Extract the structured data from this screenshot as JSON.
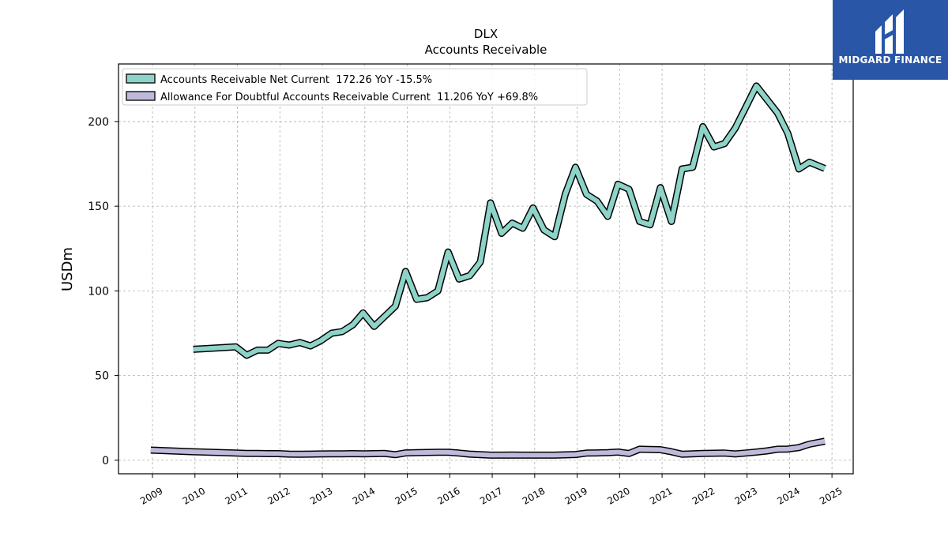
{
  "logo": {
    "text": "MIDGARD FINANCE",
    "color": "#2a56a8"
  },
  "chart_data": {
    "type": "line",
    "title": "DLX",
    "subtitle": "Accounts Receivable",
    "ylabel": "USDm",
    "xlabel": "",
    "ylim": [
      -8,
      234
    ],
    "xlim": [
      2008.2,
      2025.5
    ],
    "yticks": [
      0,
      50,
      100,
      150,
      200
    ],
    "xticks": [
      2009,
      2010,
      2011,
      2012,
      2013,
      2014,
      2015,
      2016,
      2017,
      2018,
      2019,
      2020,
      2021,
      2022,
      2023,
      2024,
      2025
    ],
    "grid": true,
    "legend_position": "upper-left",
    "series": [
      {
        "name": "Accounts Receivable Net Current  172.26 YoY -15.5%",
        "color": "#8dd3c7",
        "x": [
          2009.96,
          2010.96,
          2011.22,
          2011.47,
          2011.72,
          2011.96,
          2012.22,
          2012.47,
          2012.72,
          2012.96,
          2013.22,
          2013.47,
          2013.72,
          2013.96,
          2014.22,
          2014.47,
          2014.72,
          2014.96,
          2015.22,
          2015.47,
          2015.72,
          2015.96,
          2016.22,
          2016.47,
          2016.72,
          2016.96,
          2017.22,
          2017.47,
          2017.72,
          2017.96,
          2018.22,
          2018.47,
          2018.72,
          2018.96,
          2019.22,
          2019.47,
          2019.72,
          2019.96,
          2020.22,
          2020.47,
          2020.72,
          2020.96,
          2021.22,
          2021.47,
          2021.72,
          2021.96,
          2022.22,
          2022.47,
          2022.72,
          2022.96,
          2023.22,
          2023.47,
          2023.72,
          2023.96,
          2024.22,
          2024.47,
          2024.83
        ],
        "y": [
          65.5,
          67,
          62,
          65,
          65,
          69,
          68,
          69.5,
          67.5,
          70.5,
          75,
          76,
          80,
          87,
          79,
          85,
          91,
          111.5,
          95,
          96,
          100,
          123,
          107,
          109,
          117,
          152,
          134,
          140,
          137,
          149,
          136,
          132,
          157,
          173,
          157,
          153,
          144,
          163,
          160,
          141,
          139,
          161,
          141,
          172,
          173,
          197,
          185,
          187,
          196,
          208,
          221,
          213,
          205,
          193,
          172,
          176,
          172.26
        ]
      },
      {
        "name": "Allowance For Doubtful Accounts Receivable Current  11.206 YoY +69.8%",
        "color": "#bebada",
        "x": [
          2008.96,
          2009.96,
          2010.96,
          2011.22,
          2011.47,
          2011.72,
          2011.96,
          2012.22,
          2012.47,
          2012.72,
          2012.96,
          2013.22,
          2013.47,
          2013.72,
          2013.96,
          2014.22,
          2014.47,
          2014.72,
          2014.96,
          2015.22,
          2015.47,
          2015.72,
          2015.96,
          2016.22,
          2016.47,
          2016.72,
          2016.96,
          2017.22,
          2017.47,
          2017.72,
          2017.96,
          2018.22,
          2018.47,
          2018.72,
          2018.96,
          2019.22,
          2019.47,
          2019.72,
          2019.96,
          2020.22,
          2020.47,
          2020.72,
          2020.96,
          2021.22,
          2021.47,
          2021.72,
          2021.96,
          2022.22,
          2022.47,
          2022.72,
          2022.96,
          2023.22,
          2023.47,
          2023.72,
          2023.96,
          2024.22,
          2024.47,
          2024.83
        ],
        "y": [
          6,
          5,
          4.2,
          4,
          4,
          3.9,
          3.9,
          3.6,
          3.5,
          3.6,
          3.7,
          3.8,
          3.8,
          3.9,
          3.8,
          3.9,
          4,
          3.3,
          4.3,
          4.5,
          4.6,
          4.7,
          4.7,
          4.2,
          3.6,
          3.3,
          3,
          3,
          3.1,
          3,
          3,
          3,
          3,
          3.2,
          3.4,
          4.2,
          4.3,
          4.5,
          4.8,
          4,
          6.5,
          6.3,
          6.2,
          5,
          3.5,
          3.8,
          4,
          4.1,
          4.2,
          3.7,
          4.2,
          4.8,
          5.5,
          6.5,
          6.6,
          7.5,
          9.5,
          11.206
        ]
      }
    ]
  }
}
